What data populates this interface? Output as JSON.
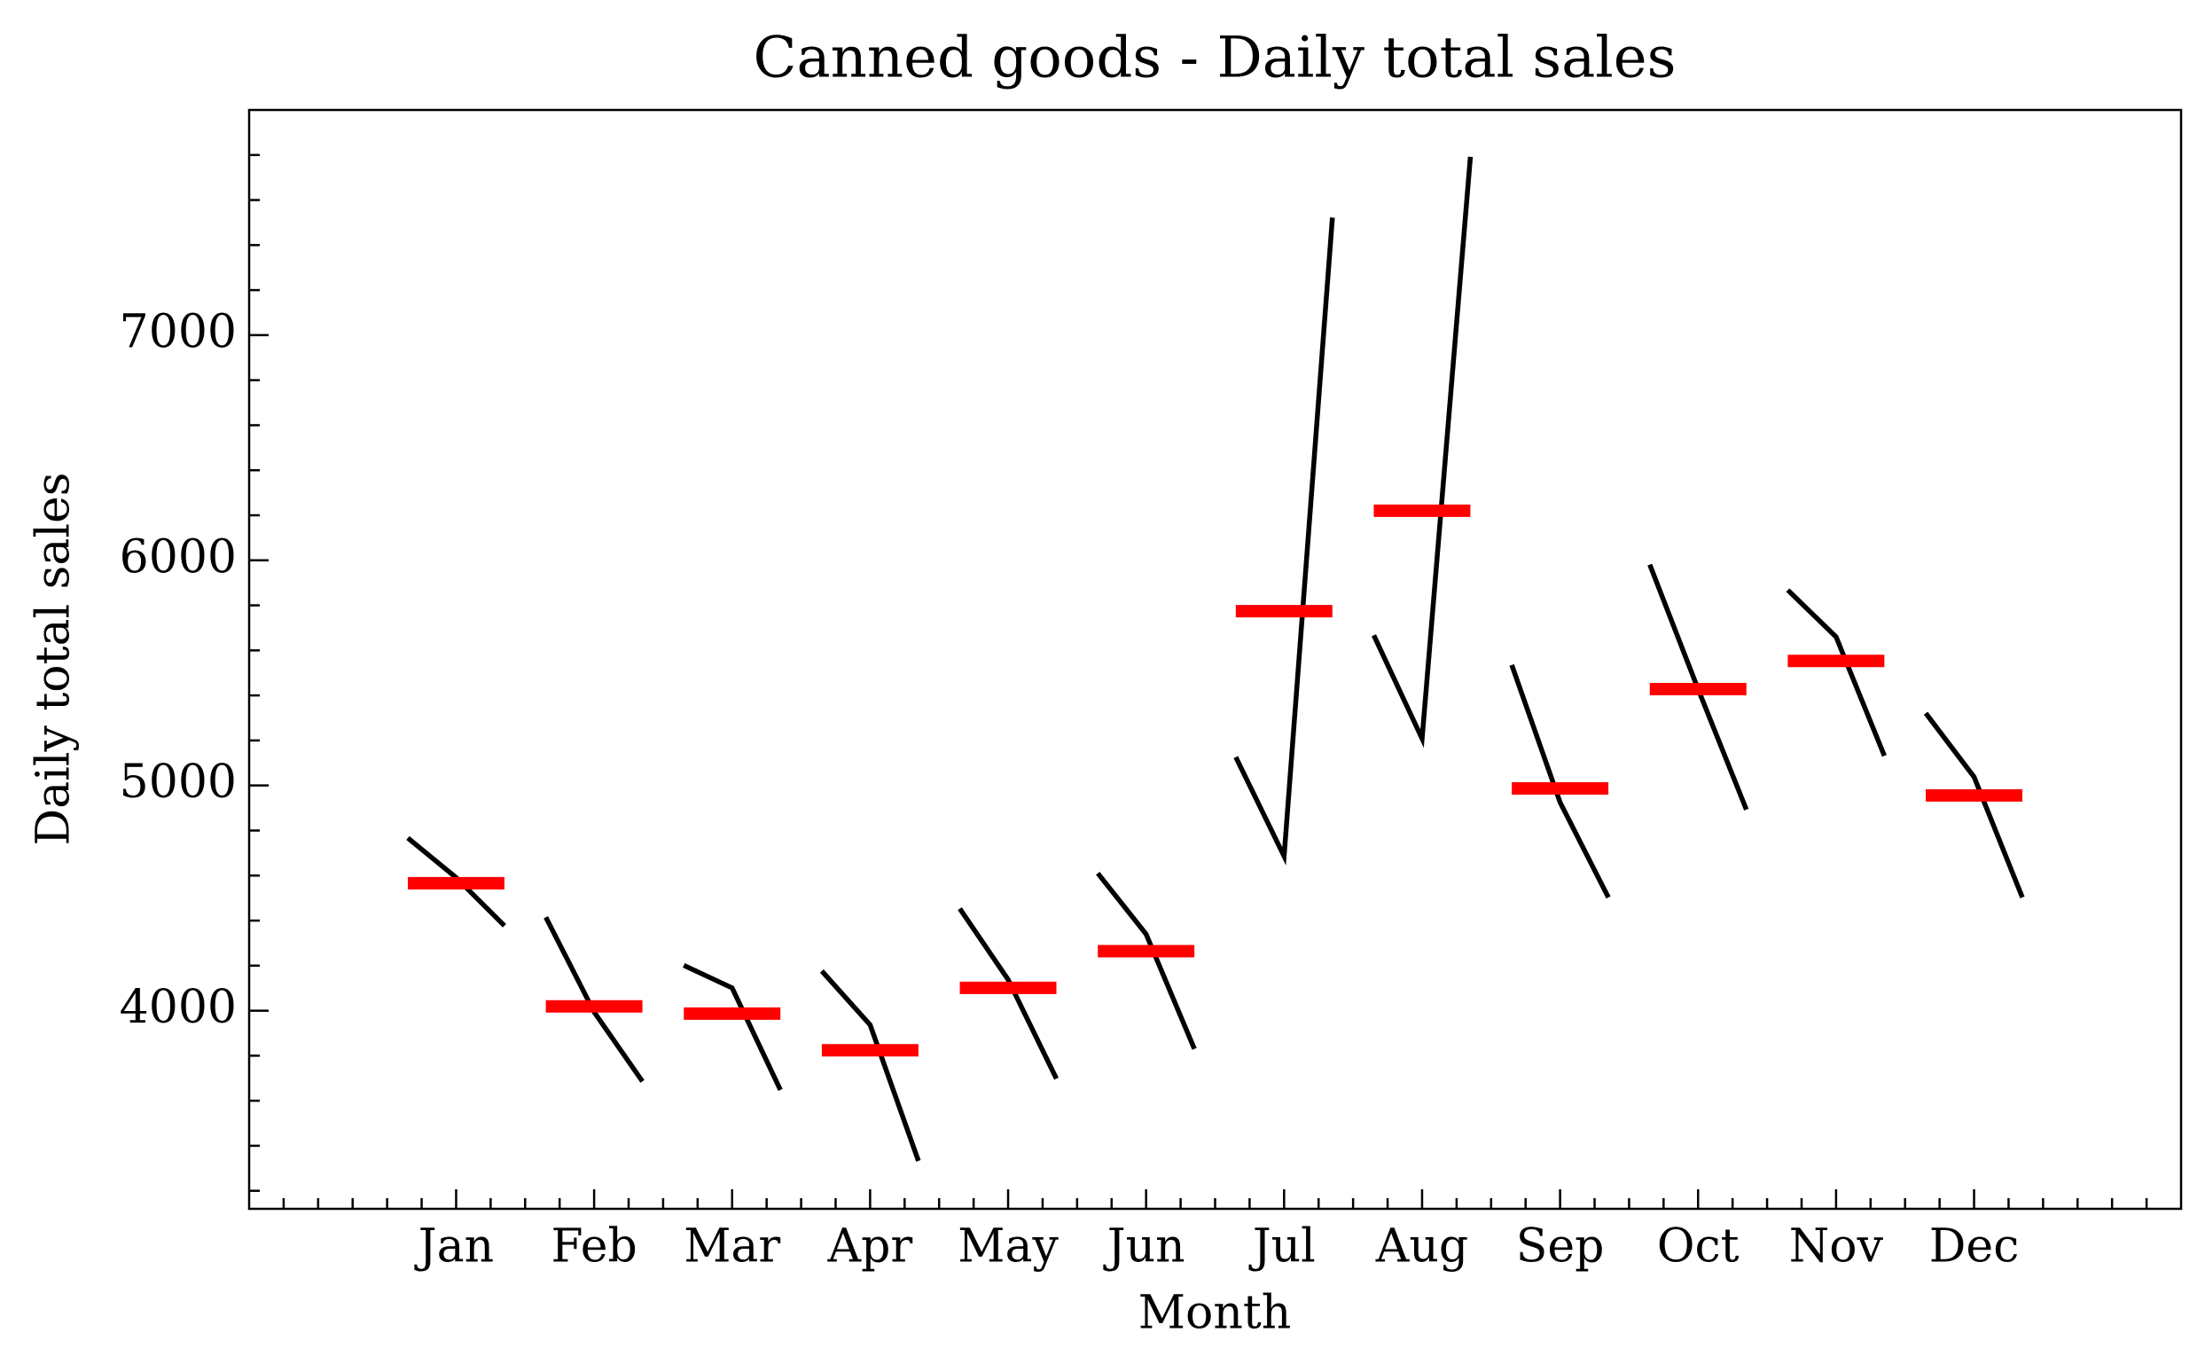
{
  "chart_data": {
    "type": "month_plot",
    "title": "Canned goods - Daily total sales",
    "xlabel": "Month",
    "ylabel": "Daily total sales",
    "categories": [
      "Jan",
      "Feb",
      "Mar",
      "Apr",
      "May",
      "Jun",
      "Jul",
      "Aug",
      "Sep",
      "Oct",
      "Nov",
      "Dec"
    ],
    "xticks": [
      1,
      2,
      3,
      4,
      5,
      6,
      7,
      8,
      9,
      10,
      11,
      12
    ],
    "xminorticks": [
      -0.25,
      0,
      0.25,
      0.5,
      0.75,
      1.25,
      1.5,
      1.75,
      2.25,
      2.5,
      2.75,
      3.25,
      3.5,
      3.75,
      4.25,
      4.5,
      4.75,
      5.25,
      5.5,
      5.75,
      6.25,
      6.5,
      6.75,
      7.25,
      7.5,
      7.75,
      8.25,
      8.5,
      8.75,
      9.25,
      9.5,
      9.75,
      10.25,
      10.5,
      10.75,
      11.25,
      11.5,
      11.75,
      12.25,
      12.5,
      12.75,
      13,
      13.25
    ],
    "xlim": [
      -0.5,
      13.5
    ],
    "values": [
      [
        4767,
        4591,
        4377
      ],
      [
        4415,
        3994,
        3686
      ],
      [
        4201,
        4101,
        3648
      ],
      [
        4176,
        3937,
        3333
      ],
      [
        4453,
        4138,
        3698
      ],
      [
        4610,
        4340,
        3830
      ],
      [
        5126,
        4686,
        7522
      ],
      [
        5667,
        5208,
        7792
      ],
      [
        5535,
        4925,
        4503
      ],
      [
        5981,
        5428,
        4893
      ],
      [
        5868,
        5660,
        5132
      ],
      [
        5321,
        5038,
        4503
      ]
    ],
    "means": [
      4566,
      4019,
      3987,
      3824,
      4101,
      4264,
      5774,
      6220,
      4987,
      5428,
      5553,
      4956
    ],
    "line_color": "#000000",
    "mean_color": "#ff0000",
    "ylim": [
      3120,
      8000
    ],
    "yticks": [
      4000,
      5000,
      6000,
      7000
    ],
    "yminorticks": [
      3200,
      3400,
      3600,
      3800,
      4200,
      4400,
      4600,
      4800,
      5200,
      5400,
      5600,
      5800,
      6200,
      6400,
      6600,
      6800,
      7200,
      7400,
      7600,
      7800
    ]
  }
}
